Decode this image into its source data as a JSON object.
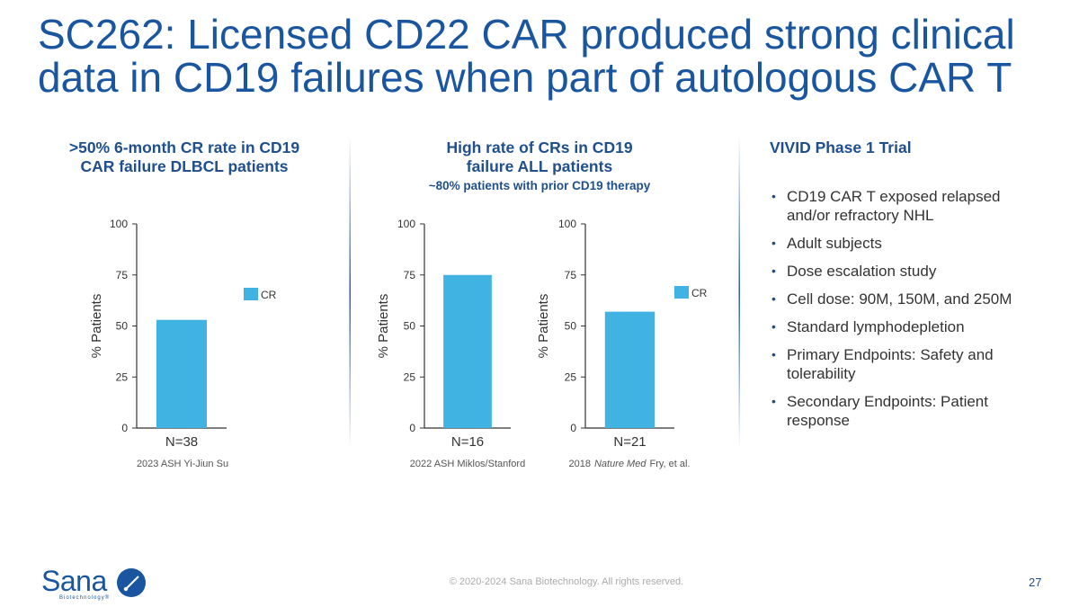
{
  "slide": {
    "title": [
      "SC262: Licensed CD22 CAR produced strong clinical",
      "data in CD19 failures when part of autologous CAR T"
    ],
    "panels": [
      {
        "heading": [
          ">50% 6-month CR rate in CD19",
          "CAR failure DLBCL patients"
        ]
      },
      {
        "heading": [
          "High rate of CRs in CD19",
          "failure ALL patients"
        ],
        "subheading": "~80% patients with prior CD19 therapy"
      },
      {
        "heading": [
          "VIVID Phase 1 Trial"
        ]
      }
    ],
    "bullets": [
      "CD19 CAR T exposed relapsed and/or refractory NHL",
      "Adult subjects",
      "Dose escalation study",
      "Cell dose: 90M, 150M, and 250M",
      "Standard lymphodepletion",
      "Primary Endpoints: Safety and tolerability",
      "Secondary Endpoints: Patient response"
    ],
    "footer": "© 2020-2024 Sana Biotechnology. All rights reserved.",
    "page_number": "27",
    "logo": {
      "name": "Sana",
      "tagline": "Biotechnology®"
    }
  },
  "chart_data": [
    {
      "type": "bar",
      "categories": [
        "N=38"
      ],
      "ylabel": "% Patients",
      "ylim": [
        0,
        100
      ],
      "yticks": [
        0,
        25,
        50,
        75,
        100
      ],
      "series": [
        {
          "name": "CR",
          "color": "#41b3e3",
          "values": [
            53
          ]
        }
      ],
      "source": [
        "2023 ASH Yi-Jiun Su"
      ]
    },
    {
      "type": "bar",
      "categories": [
        "N=16"
      ],
      "ylabel": "% Patients",
      "ylim": [
        0,
        100
      ],
      "yticks": [
        0,
        25,
        50,
        75,
        100
      ],
      "values": [
        75
      ],
      "color": "#41b3e3",
      "source": [
        "2022 ASH Miklos/Stanford"
      ]
    },
    {
      "type": "bar",
      "categories": [
        "N=21"
      ],
      "ylabel": "% Patients",
      "ylim": [
        0,
        100
      ],
      "yticks": [
        0,
        25,
        50,
        75,
        100
      ],
      "series": [
        {
          "name": "CR",
          "color": "#41b3e3",
          "values": [
            57
          ]
        }
      ],
      "source": [
        "2018",
        "Nature Med",
        "Fry, et al."
      ]
    }
  ]
}
